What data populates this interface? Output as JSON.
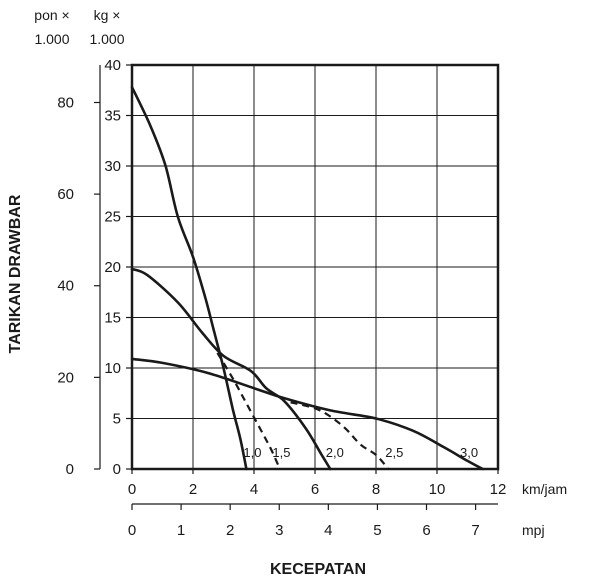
{
  "chart_data": {
    "type": "line",
    "title": "",
    "ylabel": "TARIKAN DRAWBAR",
    "xlabel": "KECEPATAN",
    "y_units": {
      "left": "pon ×",
      "left_sub": "1.000",
      "right": "kg ×",
      "right_sub": "1.000"
    },
    "x_units": {
      "top": "km/jam",
      "bottom": "mpj"
    },
    "x_axis_kmh": {
      "range": [
        0,
        12
      ],
      "ticks": [
        "0",
        "2",
        "4",
        "6",
        "8",
        "10",
        "12"
      ],
      "tick_values": [
        0,
        2,
        4,
        6,
        8,
        10,
        12
      ]
    },
    "x_axis_mph": {
      "ticks": [
        "0",
        "1",
        "2",
        "3",
        "4",
        "5",
        "6",
        "7"
      ],
      "tick_values": [
        0,
        1,
        2,
        3,
        4,
        5,
        6,
        7
      ]
    },
    "y_axis_kg": {
      "range": [
        0,
        40
      ],
      "ticks": [
        "0",
        "5",
        "10",
        "15",
        "20",
        "25",
        "30",
        "35",
        "40"
      ],
      "tick_values": [
        0,
        5,
        10,
        15,
        20,
        25,
        30,
        35,
        40
      ]
    },
    "y_axis_lb": {
      "ticks": [
        "0",
        "20",
        "40",
        "60",
        "80"
      ],
      "tick_values": [
        0,
        20,
        40,
        60,
        80
      ]
    },
    "grid": true,
    "series": [
      {
        "name": "1,0",
        "style": "solid",
        "points": [
          [
            0,
            37.8
          ],
          [
            0.6,
            34
          ],
          [
            1.1,
            30
          ],
          [
            1.5,
            25
          ],
          [
            2,
            21
          ],
          [
            2.4,
            17
          ],
          [
            2.7,
            13.5
          ],
          [
            3,
            10
          ],
          [
            3.3,
            6
          ],
          [
            3.55,
            3
          ],
          [
            3.75,
            0
          ]
        ]
      },
      {
        "name": "1,5",
        "style": "dashed",
        "points": [
          [
            2.8,
            11.5
          ],
          [
            3.3,
            9
          ],
          [
            3.75,
            6.5
          ],
          [
            4.2,
            4
          ],
          [
            4.55,
            2
          ],
          [
            4.85,
            0
          ]
        ]
      },
      {
        "name": "2,0",
        "style": "solid",
        "points": [
          [
            0,
            19.8
          ],
          [
            0.5,
            19.2
          ],
          [
            1.5,
            16.5
          ],
          [
            2.3,
            13.5
          ],
          [
            3,
            11.2
          ],
          [
            3.9,
            9.7
          ],
          [
            4.4,
            8
          ],
          [
            5,
            6.7
          ],
          [
            5.7,
            4
          ],
          [
            6.2,
            1.5
          ],
          [
            6.5,
            0
          ]
        ]
      },
      {
        "name": "2,5",
        "style": "dashed",
        "points": [
          [
            5.2,
            6.6
          ],
          [
            6,
            6
          ],
          [
            6.5,
            5.2
          ],
          [
            7,
            4
          ],
          [
            7.5,
            2.4
          ],
          [
            8,
            1.4
          ],
          [
            8.4,
            0
          ]
        ]
      },
      {
        "name": "3,0",
        "style": "solid",
        "points": [
          [
            0,
            10.9
          ],
          [
            1,
            10.5
          ],
          [
            2.5,
            9.5
          ],
          [
            4,
            8
          ],
          [
            5,
            7
          ],
          [
            6.5,
            5.8
          ],
          [
            8,
            5
          ],
          [
            9.2,
            3.8
          ],
          [
            10.2,
            2.2
          ],
          [
            11,
            0.8
          ],
          [
            11.5,
            0
          ]
        ]
      }
    ],
    "curve_labels": [
      {
        "text": "1,0",
        "x": 3.95,
        "y": 1.0
      },
      {
        "text": "1,5",
        "x": 4.9,
        "y": 1.0
      },
      {
        "text": "2,0",
        "x": 6.65,
        "y": 1.0
      },
      {
        "text": "2,5",
        "x": 8.6,
        "y": 1.0
      },
      {
        "text": "3,0",
        "x": 11.05,
        "y": 1.0
      }
    ]
  }
}
